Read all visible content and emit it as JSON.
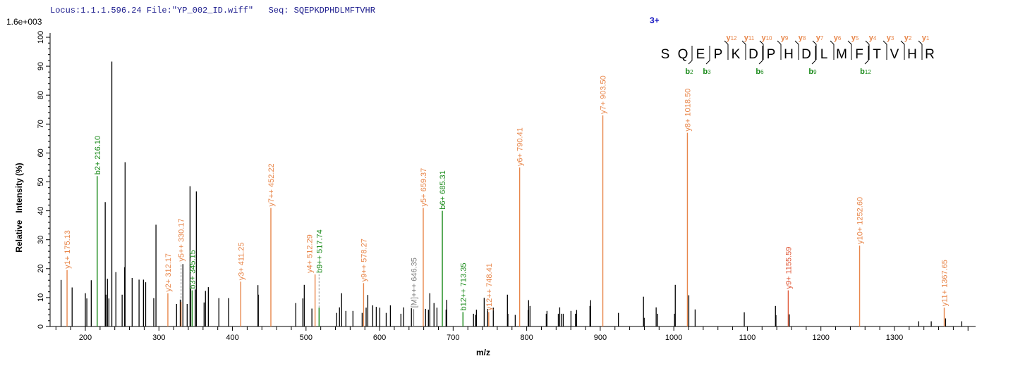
{
  "header": {
    "locus": "Locus:1.1.1.596.24",
    "file": "File:\"YP_002_ID.wiff\"",
    "seq": "Seq: SQEPKDPHDLMFTVHR"
  },
  "scale_label": "1.6e+003",
  "colors": {
    "y_ion": "#e8864a",
    "b_ion": "#1a8a1a",
    "precursor": "#808080",
    "peak": "#000000",
    "charge": "#1010c0"
  },
  "sequence_map": {
    "charge": "3+",
    "residues": [
      "S",
      "Q",
      "E",
      "P",
      "K",
      "D",
      "P",
      "H",
      "D",
      "L",
      "M",
      "F",
      "T",
      "V",
      "H",
      "R"
    ],
    "y_ions": [
      {
        "label": "y",
        "sub": "12",
        "before": 4
      },
      {
        "label": "y",
        "sub": "11",
        "before": 5
      },
      {
        "label": "y",
        "sub": "10",
        "before": 6
      },
      {
        "label": "y",
        "sub": "9",
        "before": 7
      },
      {
        "label": "y",
        "sub": "8",
        "before": 8
      },
      {
        "label": "y",
        "sub": "7",
        "before": 9
      },
      {
        "label": "y",
        "sub": "6",
        "before": 10
      },
      {
        "label": "y",
        "sub": "5",
        "before": 11
      },
      {
        "label": "y",
        "sub": "4",
        "before": 12
      },
      {
        "label": "y",
        "sub": "3",
        "before": 13
      },
      {
        "label": "y",
        "sub": "2",
        "before": 14
      },
      {
        "label": "y",
        "sub": "1",
        "before": 15
      }
    ],
    "b_ions": [
      {
        "label": "b",
        "sub": "2",
        "after": 1
      },
      {
        "label": "b",
        "sub": "3",
        "after": 2
      },
      {
        "label": "b",
        "sub": "6",
        "after": 5
      },
      {
        "label": "b",
        "sub": "9",
        "after": 8
      },
      {
        "label": "b",
        "sub": "12",
        "after": 11
      }
    ]
  },
  "chart_data": {
    "type": "bar",
    "xlabel": "m/z",
    "ylabel": "Relative   Intensity (%)",
    "xlim": [
      151,
      1410
    ],
    "ylim": [
      0,
      100
    ],
    "xticks": [
      200,
      300,
      400,
      500,
      600,
      700,
      800,
      900,
      1000,
      1100,
      1200,
      1300
    ],
    "yticks": [
      0,
      10,
      20,
      30,
      40,
      50,
      60,
      70,
      80,
      90,
      100
    ],
    "grid": false,
    "annotated_peaks": [
      {
        "mz": 175.13,
        "intensity": 19.5,
        "ion": "y",
        "label": "y1+ 175.13"
      },
      {
        "mz": 216.1,
        "intensity": 52,
        "ion": "b",
        "label": "b2+ 216.10"
      },
      {
        "mz": 312.17,
        "intensity": 11.5,
        "ion": "y",
        "label": "y2+ 312.17"
      },
      {
        "mz": 330.17,
        "intensity": 8.5,
        "ion": "y",
        "label": "y5++ 330.17",
        "dashed": true,
        "label_at": 22
      },
      {
        "mz": 345.15,
        "intensity": 12.5,
        "ion": "b",
        "label": "b3+ 345.15"
      },
      {
        "mz": 411.25,
        "intensity": 15.5,
        "ion": "y",
        "label": "y3+ 411.25"
      },
      {
        "mz": 452.22,
        "intensity": 41,
        "ion": "y",
        "label": "y7++ 452.22"
      },
      {
        "mz": 512.29,
        "intensity": 18,
        "ion": "y",
        "label": "y4+ 512.29"
      },
      {
        "mz": 517.74,
        "intensity": 6.5,
        "ion": "b",
        "label": "b9++ 517.74",
        "dashed": true,
        "label_at": 18
      },
      {
        "mz": 578.27,
        "intensity": 15,
        "ion": "y",
        "label": "y9++ 578.27"
      },
      {
        "mz": 646.35,
        "intensity": 6,
        "ion": "p",
        "label": "[M]+++ 646.35"
      },
      {
        "mz": 659.37,
        "intensity": 41,
        "ion": "y",
        "label": "y5+ 659.37"
      },
      {
        "mz": 685.31,
        "intensity": 40,
        "ion": "b",
        "label": "b6+ 685.31"
      },
      {
        "mz": 713.35,
        "intensity": 5,
        "ion": "b",
        "label": "b12++ 713.35"
      },
      {
        "mz": 748.41,
        "intensity": 5,
        "ion": "y",
        "label": "y12++ 748.41"
      },
      {
        "mz": 790.41,
        "intensity": 55,
        "ion": "y",
        "label": "y6+ 790.41"
      },
      {
        "mz": 903.5,
        "intensity": 73,
        "ion": "y",
        "label": "y7+ 903.50"
      },
      {
        "mz": 1018.5,
        "intensity": 67,
        "ion": "y",
        "label": "y8+ 1018.50"
      },
      {
        "mz": 1155.59,
        "intensity": 12.5,
        "ion": "y",
        "label": "y9+ 1155.59"
      },
      {
        "mz": 1252.6,
        "intensity": 28,
        "ion": "y",
        "label": "y10+ 1252.60"
      },
      {
        "mz": 1367.65,
        "intensity": 6.5,
        "ion": "y",
        "label": "y11+ 1367.65"
      }
    ],
    "peaks": [
      [
        167,
        16.1
      ],
      [
        182,
        13.5
      ],
      [
        200,
        11.5
      ],
      [
        202,
        9.7
      ],
      [
        208,
        16
      ],
      [
        227,
        43
      ],
      [
        228,
        11
      ],
      [
        230,
        16.5
      ],
      [
        232,
        9.7
      ],
      [
        236,
        91.6
      ],
      [
        241.5,
        18.8
      ],
      [
        250,
        11
      ],
      [
        253.4,
        20.5
      ],
      [
        254,
        56.8
      ],
      [
        263.6,
        16.8
      ],
      [
        273,
        16.2
      ],
      [
        279,
        16.2
      ],
      [
        282,
        15.3
      ],
      [
        293,
        9.8
      ],
      [
        296,
        35.2
      ],
      [
        324,
        7.8
      ],
      [
        329,
        9.3
      ],
      [
        332.6,
        21.6
      ],
      [
        338.4,
        7.8
      ],
      [
        342.3,
        48.5
      ],
      [
        343,
        13
      ],
      [
        349.3,
        12.8
      ],
      [
        350.9,
        46.7
      ],
      [
        361.4,
        8.3
      ],
      [
        363.3,
        12.3
      ],
      [
        367.2,
        13.6
      ],
      [
        381.5,
        9.8
      ],
      [
        394.7,
        9.8
      ],
      [
        434.6,
        14.3
      ],
      [
        435.2,
        11
      ],
      [
        486.1,
        8.1
      ],
      [
        495.7,
        9.7
      ],
      [
        497.6,
        14.4
      ],
      [
        508,
        6.2
      ],
      [
        541.7,
        4.7
      ],
      [
        545.5,
        6.6
      ],
      [
        548.4,
        11.5
      ],
      [
        554.2,
        5.4
      ],
      [
        563.8,
        5.4
      ],
      [
        576.3,
        4.7
      ],
      [
        581.7,
        6.5
      ],
      [
        584,
        10.9
      ],
      [
        590.7,
        7.3
      ],
      [
        595.5,
        6.8
      ],
      [
        600.3,
        6.5
      ],
      [
        609,
        4.7
      ],
      [
        614.7,
        7.3
      ],
      [
        629,
        4.4
      ],
      [
        632.8,
        6.6
      ],
      [
        643.3,
        6.3
      ],
      [
        662.5,
        6.1
      ],
      [
        666.4,
        5.8
      ],
      [
        668.3,
        11.5
      ],
      [
        674,
        8.1
      ],
      [
        678,
        6.5
      ],
      [
        690.4,
        5.8
      ],
      [
        691.3,
        9.2
      ],
      [
        727.7,
        4.4
      ],
      [
        730.4,
        4
      ],
      [
        731.7,
        5.8
      ],
      [
        742.2,
        9.9
      ],
      [
        747,
        6.1
      ],
      [
        754.6,
        6.5
      ],
      [
        773.8,
        11
      ],
      [
        774.5,
        4.4
      ],
      [
        784.4,
        4
      ],
      [
        802,
        5.7
      ],
      [
        802.6,
        9.1
      ],
      [
        804.5,
        7.1
      ],
      [
        826.6,
        4.4
      ],
      [
        827.6,
        5.4
      ],
      [
        843,
        4.4
      ],
      [
        844.9,
        6.6
      ],
      [
        847.2,
        4.4
      ],
      [
        849.7,
        4.4
      ],
      [
        860.2,
        5.4
      ],
      [
        866.3,
        4.4
      ],
      [
        867.9,
        5.7
      ],
      [
        886,
        7.1
      ],
      [
        887,
        9.1
      ],
      [
        924.7,
        4.7
      ],
      [
        958.8,
        10.3
      ],
      [
        959.8,
        3
      ],
      [
        976,
        6.6
      ],
      [
        978,
        4.4
      ],
      [
        1001,
        4.4
      ],
      [
        1002,
        14.4
      ],
      [
        1020.4,
        10.8
      ],
      [
        1029,
        5.9
      ],
      [
        1095.8,
        4.9
      ],
      [
        1138.2,
        7.1
      ],
      [
        1138.9,
        3.9
      ],
      [
        1157,
        4.2
      ],
      [
        1333,
        1.8
      ],
      [
        1350,
        1.8
      ],
      [
        1369.5,
        2.8
      ],
      [
        1391.5,
        1.8
      ]
    ]
  }
}
